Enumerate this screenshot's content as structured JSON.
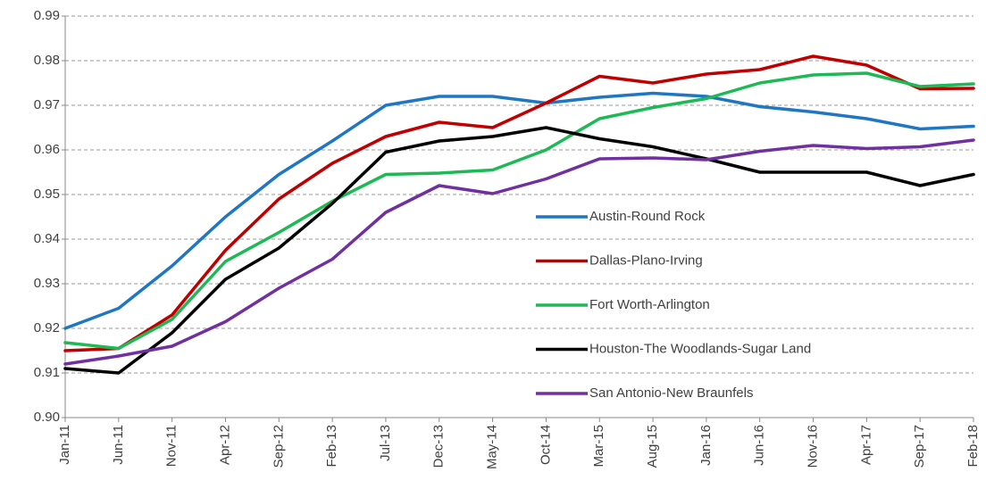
{
  "chart_data": {
    "type": "line",
    "categories": [
      "Jan-11",
      "Jun-11",
      "Nov-11",
      "Apr-12",
      "Sep-12",
      "Feb-13",
      "Jul-13",
      "Dec-13",
      "May-14",
      "Oct-14",
      "Mar-15",
      "Aug-15",
      "Jan-16",
      "Jun-16",
      "Nov-16",
      "Apr-17",
      "Sep-17",
      "Feb-18"
    ],
    "series": [
      {
        "name": "Austin-Round Rock",
        "color": "#1f77c4",
        "values": [
          0.92,
          0.9245,
          0.934,
          0.945,
          0.9545,
          0.962,
          0.97,
          0.972,
          0.972,
          0.9705,
          0.9718,
          0.9727,
          0.972,
          0.9697,
          0.9685,
          0.967,
          0.9647,
          0.9653
        ]
      },
      {
        "name": "Dallas-Plano-Irving",
        "color": "#c00000",
        "values": [
          0.915,
          0.9155,
          0.923,
          0.9375,
          0.949,
          0.957,
          0.963,
          0.9662,
          0.965,
          0.9705,
          0.9765,
          0.975,
          0.977,
          0.978,
          0.981,
          0.979,
          0.9737,
          0.9738
        ]
      },
      {
        "name": "Fort Worth-Arlington",
        "color": "#1db954",
        "values": [
          0.9168,
          0.9155,
          0.922,
          0.935,
          0.9415,
          0.9485,
          0.9545,
          0.9548,
          0.9555,
          0.96,
          0.967,
          0.9695,
          0.9715,
          0.975,
          0.9768,
          0.9772,
          0.9742,
          0.9748
        ]
      },
      {
        "name": "Houston-The Woodlands-Sugar Land",
        "color": "#000000",
        "values": [
          0.911,
          0.91,
          0.919,
          0.931,
          0.938,
          0.948,
          0.9595,
          0.962,
          0.963,
          0.965,
          0.9625,
          0.9607,
          0.958,
          0.955,
          0.955,
          0.955,
          0.952,
          0.9545
        ]
      },
      {
        "name": "San Antonio-New Braunfels",
        "color": "#7030a0",
        "values": [
          0.912,
          0.9138,
          0.916,
          0.9215,
          0.929,
          0.9355,
          0.946,
          0.952,
          0.9502,
          0.9535,
          0.958,
          0.9582,
          0.9578,
          0.9597,
          0.961,
          0.9603,
          0.9607,
          0.9622
        ]
      }
    ],
    "ylim": [
      0.9,
      0.99
    ],
    "yticks": [
      {
        "value": 0.9,
        "label": "0.90"
      },
      0.91,
      0.92,
      0.93,
      0.94,
      0.95,
      0.96,
      0.97,
      0.98,
      0.99
    ],
    "grid": true
  }
}
